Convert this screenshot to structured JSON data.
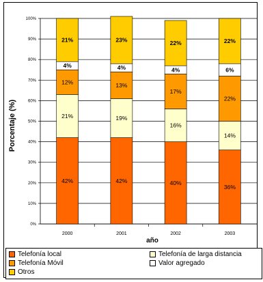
{
  "chart_data": {
    "type": "bar",
    "stacked": true,
    "percent_stacked": true,
    "title": "",
    "xlabel": "año",
    "ylabel": "Porcentaje (%)",
    "ylim": [
      0,
      100
    ],
    "yticks": [
      "0%",
      "10%",
      "20%",
      "30%",
      "40%",
      "50%",
      "60%",
      "70%",
      "80%",
      "90%",
      "100%"
    ],
    "grid": true,
    "legend_position": "bottom",
    "categories": [
      "2000",
      "2001",
      "2002",
      "2003"
    ],
    "series": [
      {
        "name": "Telefonía local",
        "color": "#ff6600",
        "values": [
          42,
          42,
          40,
          36
        ],
        "labels": [
          "42%",
          "42%",
          "40%",
          "36%"
        ]
      },
      {
        "name": "Telefonía de larga distancia",
        "color": "#ffffcc",
        "values": [
          21,
          19,
          16,
          14
        ],
        "labels": [
          "21%",
          "19%",
          "16%",
          "14%"
        ]
      },
      {
        "name": "Telefonía Móvil",
        "color": "#ff9900",
        "values": [
          12,
          13,
          17,
          22
        ],
        "labels": [
          "12%",
          "13%",
          "17%",
          "22%"
        ]
      },
      {
        "name": "Valor agregado",
        "color": "#ffffff",
        "values": [
          4,
          4,
          4,
          6
        ],
        "labels": [
          "4%",
          "4%",
          "4%",
          "6%"
        ]
      },
      {
        "name": "Otros",
        "color": "#ffcc00",
        "values": [
          21,
          23,
          22,
          22
        ],
        "labels": [
          "21%",
          "23%",
          "22%",
          "22%"
        ]
      }
    ]
  }
}
